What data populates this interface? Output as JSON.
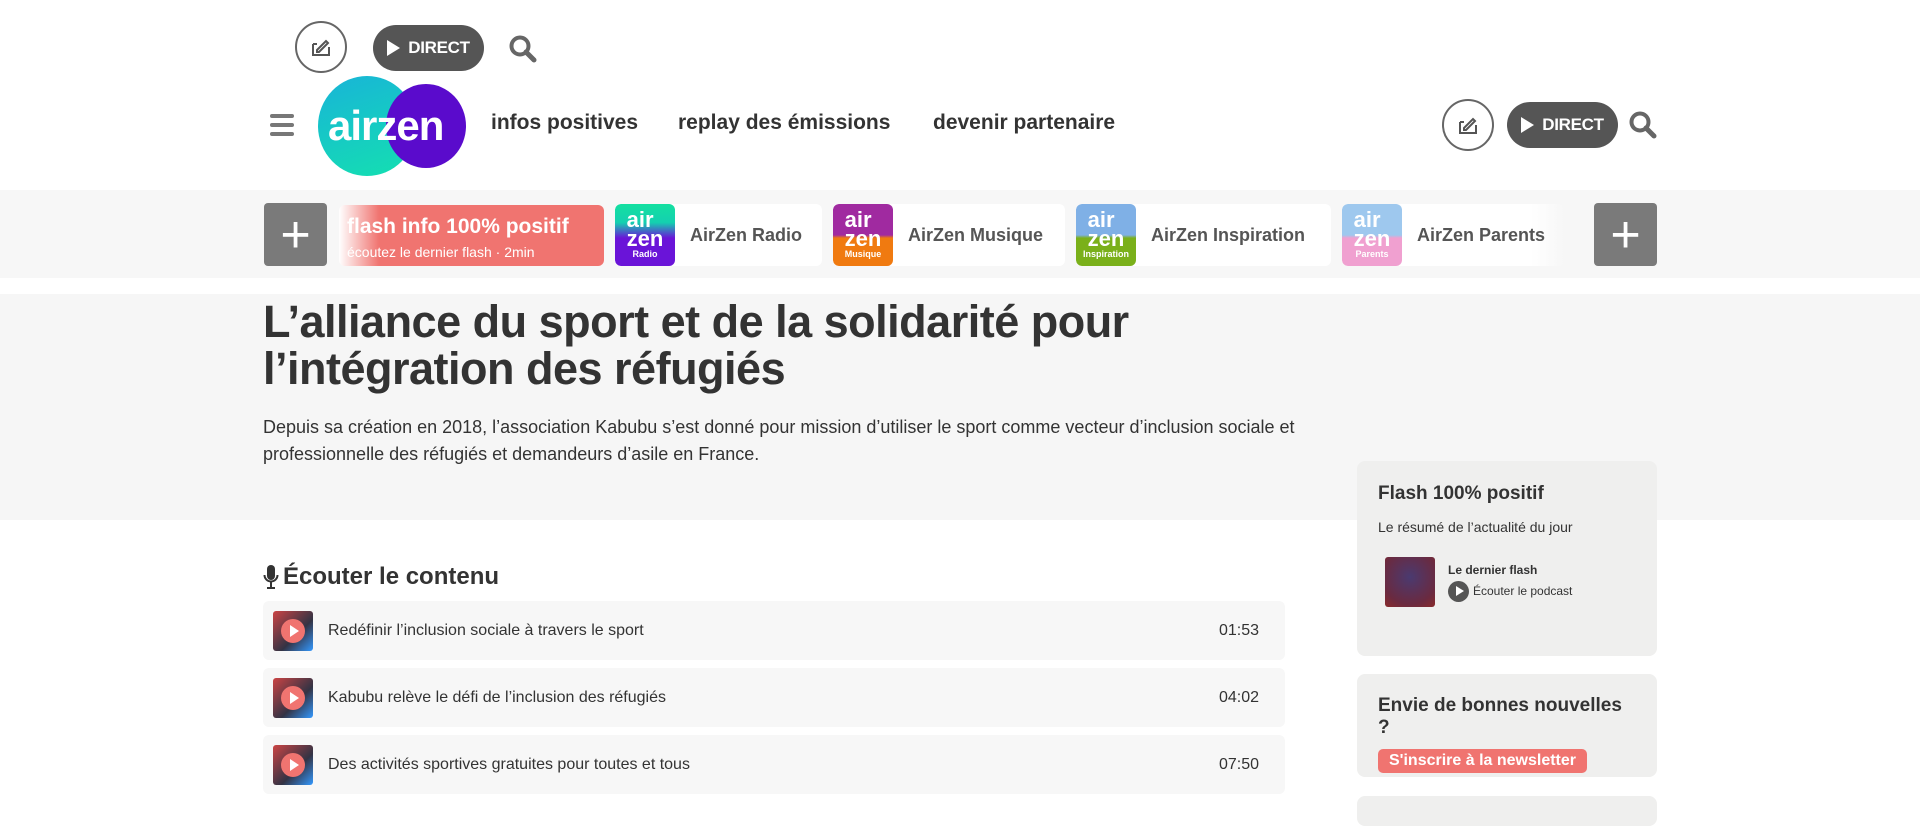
{
  "top_bar": {
    "direct_label": "DIRECT"
  },
  "header": {
    "logo_text": "airzen",
    "nav": [
      "infos positives",
      "replay des émissions",
      "devenir partenaire"
    ],
    "direct_label": "DIRECT"
  },
  "channels": {
    "flash": {
      "title": "flash info 100% positif",
      "subtitle": "écoutez le dernier flash · 2min"
    },
    "items": [
      {
        "label": "AirZen Radio",
        "sub": "Radio",
        "color": "#6a14d8"
      },
      {
        "label": "AirZen Musique",
        "sub": "Musique",
        "color": "#a02aa0"
      },
      {
        "label": "AirZen Inspiration",
        "sub": "Inspiration",
        "color": "#7fb0e6"
      },
      {
        "label": "AirZen Parents",
        "sub": "Parents",
        "color": "#9ec8ee"
      }
    ]
  },
  "article": {
    "title": "L’alliance du sport et de la solidarité pour l’intégration des réfugiés",
    "description": "Depuis sa création en 2018, l’association Kabubu s’est donné pour mission d’utiliser le sport comme vecteur d’inclusion sociale et professionnelle des réfugiés et demandeurs d’asile en France."
  },
  "listen": {
    "heading": "Écouter le contenu",
    "items": [
      {
        "title": "Redéfinir l’inclusion sociale à travers le sport",
        "duration": "01:53"
      },
      {
        "title": "Kabubu relève le défi de l’inclusion des réfugiés",
        "duration": "04:02"
      },
      {
        "title": "Des activités sportives gratuites pour toutes et tous",
        "duration": "07:50"
      }
    ]
  },
  "sidebar": {
    "flash": {
      "title": "Flash 100% positif",
      "subtitle": "Le résumé de l’actualité du jour",
      "podcast_title": "Le dernier flash",
      "podcast_link": "Écouter le podcast"
    },
    "newsletter": {
      "title": "Envie de bonnes nouvelles ?",
      "button": "S'inscrire à la newsletter"
    }
  },
  "colors": {
    "accent": "#f07470",
    "dark_button": "#555555",
    "band": "#f7f7f7"
  }
}
